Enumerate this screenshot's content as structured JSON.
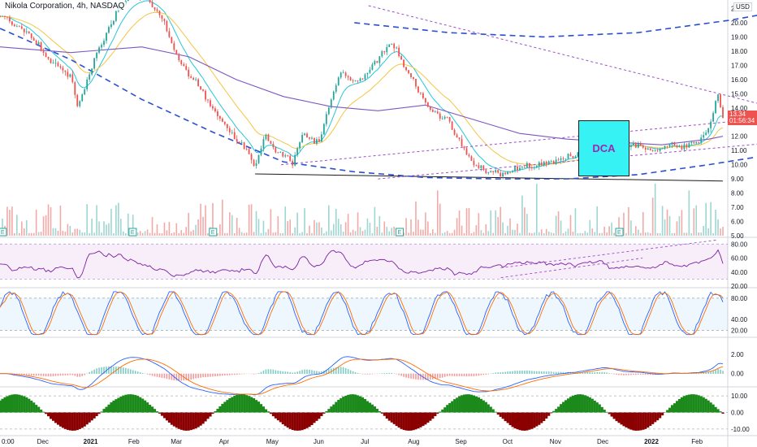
{
  "header": {
    "title": "Nikola Corporation, 4h, NASDAQ",
    "currency": "USD"
  },
  "price_badge": {
    "price": "13.34",
    "countdown": "01:56:34"
  },
  "annotation": {
    "label": "DCA"
  },
  "colors": {
    "up": "#26a69a",
    "down": "#ef5350",
    "sma_long": "#7e57c2",
    "ema_short": "#26c6da",
    "ema_mid": "#f5c542",
    "trend_dash": "#2a4fd0",
    "channel": "#9c4dcc",
    "support": "#1a1a1a",
    "hist_pos": "#1b8a1b",
    "hist_neg": "#8b0000"
  },
  "earnings_marker": "E",
  "chart_data": [
    {
      "type": "candlestick",
      "title": "Nikola Corporation, 4h, NASDAQ",
      "ylabel": "USD",
      "ylim": [
        5,
        21
      ],
      "yticks": [
        "21.00",
        "20.00",
        "19.00",
        "18.00",
        "17.00",
        "16.00",
        "15.00",
        "14.00",
        "13.00",
        "12.00",
        "11.00",
        "10.00",
        "9.00",
        "8.00",
        "7.00",
        "6.00",
        "5.00"
      ],
      "last_price": 13.34,
      "x_range": [
        0,
        15.3
      ],
      "xticks": [
        "0:00",
        "Dec",
        "2021",
        "Feb",
        "Mar",
        "Apr",
        "May",
        "Jun",
        "Jul",
        "Aug",
        "Sep",
        "Oct",
        "Nov",
        "Dec",
        "2022",
        "Feb"
      ],
      "xtick_positions": [
        0.0,
        0.75,
        1.73,
        2.68,
        3.58,
        4.6,
        5.6,
        6.6,
        7.6,
        8.6,
        9.6,
        10.6,
        11.6,
        12.6,
        13.6,
        14.6
      ],
      "price_path": [
        [
          0,
          20.5
        ],
        [
          0.6,
          19.2
        ],
        [
          1.1,
          17.2
        ],
        [
          1.5,
          16.2
        ],
        [
          1.65,
          14.0
        ],
        [
          1.8,
          15.5
        ],
        [
          2.0,
          17.5
        ],
        [
          2.3,
          19.5
        ],
        [
          2.5,
          21.0
        ],
        [
          2.9,
          22.0
        ],
        [
          3.15,
          21.4
        ],
        [
          3.45,
          20.2
        ],
        [
          3.75,
          17.5
        ],
        [
          4.2,
          15.5
        ],
        [
          4.5,
          14.0
        ],
        [
          4.8,
          12.5
        ],
        [
          5.2,
          11.2
        ],
        [
          5.4,
          9.9
        ],
        [
          5.6,
          12.0
        ],
        [
          5.85,
          11.0
        ],
        [
          6.2,
          10.2
        ],
        [
          6.4,
          12.1
        ],
        [
          6.75,
          11.5
        ],
        [
          7.0,
          14.5
        ],
        [
          7.2,
          16.5
        ],
        [
          7.55,
          15.8
        ],
        [
          7.8,
          16.5
        ],
        [
          8.05,
          17.8
        ],
        [
          8.3,
          18.7
        ],
        [
          8.55,
          17.0
        ],
        [
          8.8,
          15.5
        ],
        [
          9.1,
          13.8
        ],
        [
          9.5,
          13.0
        ],
        [
          9.75,
          11.4
        ],
        [
          10.05,
          10.0
        ],
        [
          10.3,
          9.6
        ],
        [
          10.6,
          9.3
        ],
        [
          11.0,
          9.8
        ],
        [
          11.5,
          10.1
        ],
        [
          12.0,
          10.5
        ],
        [
          12.4,
          11.2
        ],
        [
          12.75,
          12.2
        ],
        [
          13.1,
          11.1
        ],
        [
          13.45,
          11.4
        ],
        [
          13.75,
          10.9
        ],
        [
          14.2,
          11.5
        ],
        [
          14.5,
          11.3
        ],
        [
          14.8,
          11.7
        ],
        [
          15.0,
          12.6
        ],
        [
          15.2,
          15.1
        ],
        [
          15.3,
          13.34
        ]
      ],
      "sma_long": [
        [
          0,
          18.3
        ],
        [
          1.5,
          17.9
        ],
        [
          3.0,
          18.3
        ],
        [
          4.0,
          17.6
        ],
        [
          5.0,
          16.0
        ],
        [
          6.0,
          14.8
        ],
        [
          7.0,
          14.1
        ],
        [
          8.0,
          13.8
        ],
        [
          9.0,
          14.2
        ],
        [
          10.0,
          13.2
        ],
        [
          11.0,
          12.2
        ],
        [
          12.0,
          11.8
        ],
        [
          13.0,
          11.6
        ],
        [
          14.0,
          11.4
        ],
        [
          15.0,
          11.8
        ],
        [
          15.3,
          12.0
        ]
      ],
      "support_line": [
        [
          5.4,
          9.35
        ],
        [
          15.3,
          8.85
        ]
      ],
      "channel_lines": [
        [
          [
            7.8,
            21.2
          ],
          [
            16.3,
            14.1
          ]
        ],
        [
          [
            5.95,
            10.0
          ],
          [
            18.8,
            14.1
          ]
        ],
        [
          [
            8.0,
            9.0
          ],
          [
            18.5,
            12.2
          ]
        ]
      ],
      "dashed_curves": [
        [
          [
            0,
            19.6
          ],
          [
            1.5,
            17.4
          ],
          [
            3.0,
            14.6
          ],
          [
            4.5,
            12.3
          ],
          [
            6.0,
            10.2
          ],
          [
            7.5,
            9.5
          ],
          [
            9.0,
            9.1
          ],
          [
            10.5,
            9.0
          ],
          [
            12.0,
            9.0
          ],
          [
            13.5,
            9.3
          ],
          [
            15.0,
            10.0
          ],
          [
            16.5,
            10.8
          ],
          [
            18.0,
            12.0
          ],
          [
            19.4,
            13.9
          ]
        ],
        [
          [
            7.5,
            20.0
          ],
          [
            9.5,
            19.3
          ],
          [
            11.5,
            19.0
          ],
          [
            13.5,
            19.3
          ],
          [
            15.5,
            20.2
          ],
          [
            17.5,
            21.4
          ],
          [
            18.5,
            22.2
          ]
        ]
      ]
    },
    {
      "type": "bar",
      "name": "volume",
      "note": "volume histogram at bottom of price pane"
    },
    {
      "type": "line",
      "name": "RSI",
      "ylim": [
        20,
        85
      ],
      "yticks": [
        "80.00",
        "60.00",
        "40.00",
        "20.00"
      ],
      "band": [
        30,
        80
      ]
    },
    {
      "type": "line",
      "name": "Stochastic",
      "ylim": [
        10,
        95
      ],
      "yticks": [
        "80.00",
        "40.00",
        "20.00"
      ],
      "band": [
        20,
        80
      ]
    },
    {
      "type": "line",
      "name": "MACD",
      "ylim": [
        -1.2,
        3.5
      ],
      "yticks": [
        "2.00",
        "0.00"
      ]
    },
    {
      "type": "area",
      "name": "Momentum histogram",
      "ylim": [
        -13,
        14
      ],
      "yticks": [
        "10.00",
        "0.00",
        "-10.00"
      ]
    }
  ]
}
